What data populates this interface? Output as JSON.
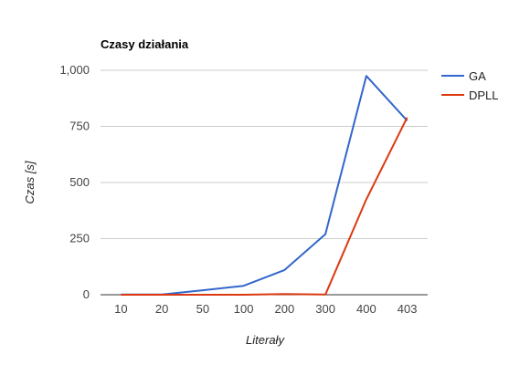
{
  "chart_data": {
    "type": "line",
    "title": "Czasy działania",
    "xlabel": "Literały",
    "ylabel": "Czas [s]",
    "categories": [
      "10",
      "20",
      "50",
      "100",
      "200",
      "300",
      "400",
      "403"
    ],
    "ylim": [
      0,
      1000
    ],
    "yticks": [
      0,
      250,
      500,
      750,
      1000
    ],
    "ytick_labels": [
      "0",
      "250",
      "500",
      "750",
      "1,000"
    ],
    "grid": true,
    "legend_position": "right",
    "series": [
      {
        "name": "GA",
        "color": "#3366cc",
        "values": [
          1,
          1,
          20,
          40,
          110,
          270,
          975,
          775
        ]
      },
      {
        "name": "DPLL",
        "color": "#dc3912",
        "values": [
          0,
          0,
          0,
          0,
          3,
          1,
          425,
          790
        ]
      }
    ]
  }
}
